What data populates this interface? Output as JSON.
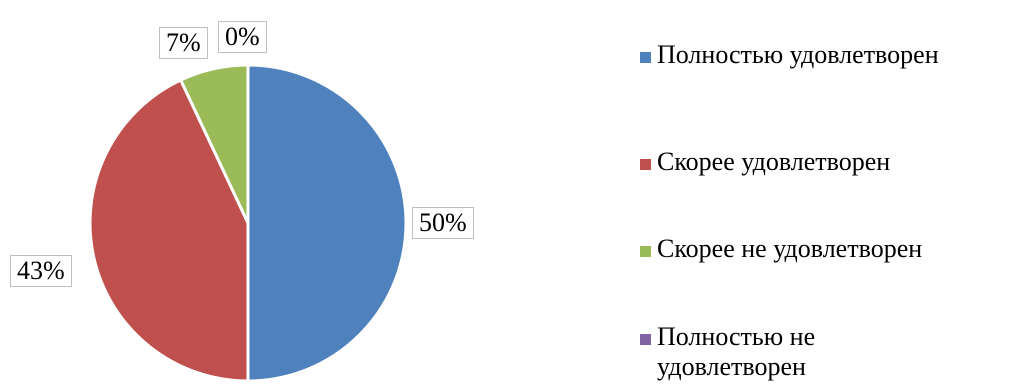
{
  "chart_data": {
    "type": "pie",
    "categories": [
      "Полностью удовлетворен",
      "Скорее удовлетворен",
      "Скорее не удовлетворен",
      "Полностью не удовлетворен"
    ],
    "values": [
      50,
      43,
      7,
      0
    ],
    "data_labels": [
      "50%",
      "43%",
      "7%",
      "0%"
    ],
    "colors": [
      "#4f81bd",
      "#c0504d",
      "#9bbb59",
      "#8064a2"
    ],
    "start_angle_deg": 0,
    "direction": "clockwise",
    "legend": "right"
  }
}
